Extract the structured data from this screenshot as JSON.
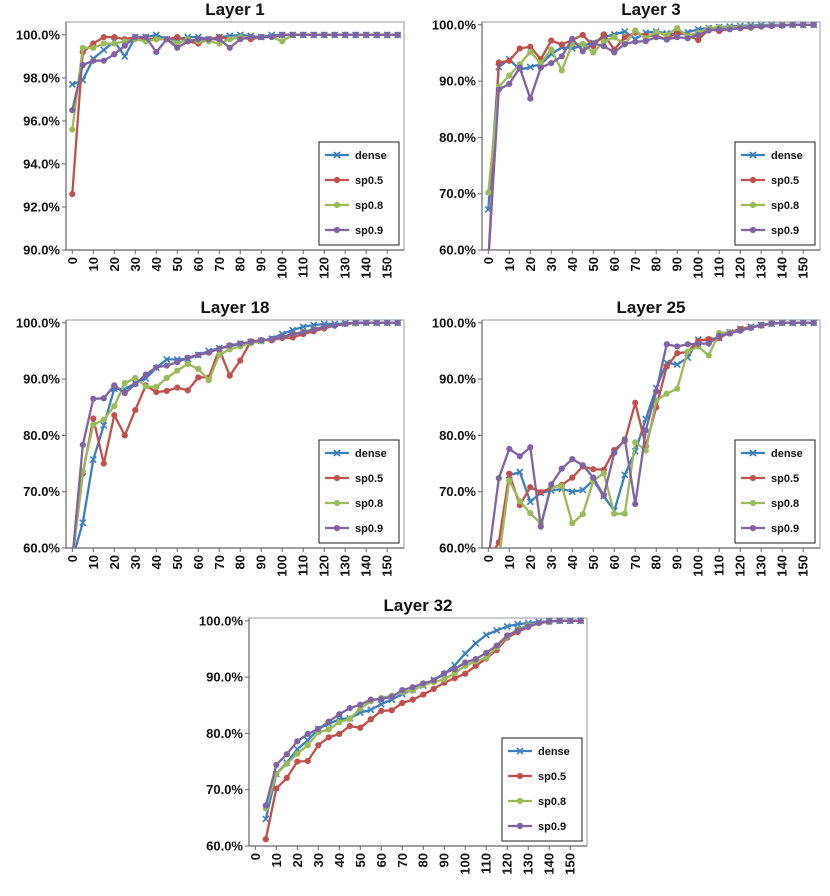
{
  "chart_data": [
    {
      "type": "line",
      "title": "Layer 1",
      "xlabel": "",
      "ylabel": "",
      "x": [
        0,
        5,
        10,
        15,
        20,
        25,
        30,
        35,
        40,
        45,
        50,
        55,
        60,
        65,
        70,
        75,
        80,
        85,
        90,
        95,
        100,
        105,
        110,
        115,
        120,
        125,
        130,
        135,
        140,
        145,
        150,
        155
      ],
      "xticks": [
        0,
        10,
        20,
        30,
        40,
        50,
        60,
        70,
        80,
        90,
        100,
        110,
        120,
        130,
        140,
        150
      ],
      "yticks": [
        90,
        92,
        94,
        96,
        98,
        100
      ],
      "ylim": [
        90,
        100.6
      ],
      "ytick_format": "%",
      "y_decimals": 1,
      "grid": false,
      "legend_position": "bottom-right",
      "series": [
        {
          "name": "dense",
          "color": "#3c7fbf",
          "marker": "x",
          "values": [
            97.7,
            97.9,
            98.9,
            99.3,
            99.7,
            99.0,
            99.9,
            99.9,
            100.0,
            99.8,
            99.8,
            99.9,
            99.9,
            99.8,
            99.9,
            99.95,
            100.0,
            99.95,
            99.9,
            100.0,
            100.0,
            100.0,
            100.0,
            100.0,
            100.0,
            100.0,
            100.0,
            100.0,
            100.0,
            100.0,
            100.0,
            100.0
          ]
        },
        {
          "name": "sp0.5",
          "color": "#c0504d",
          "marker": "o",
          "values": [
            92.6,
            99.2,
            99.6,
            99.9,
            99.9,
            99.8,
            99.9,
            99.8,
            99.8,
            99.8,
            99.9,
            99.7,
            99.6,
            99.8,
            99.9,
            99.8,
            99.9,
            99.8,
            99.9,
            99.9,
            100.0,
            100.0,
            100.0,
            100.0,
            100.0,
            100.0,
            100.0,
            100.0,
            100.0,
            100.0,
            100.0,
            100.0
          ]
        },
        {
          "name": "sp0.8",
          "color": "#9bbb59",
          "marker": "o",
          "values": [
            95.6,
            99.4,
            99.4,
            99.6,
            99.6,
            99.7,
            99.8,
            99.7,
            99.8,
            99.8,
            99.6,
            99.8,
            99.7,
            99.7,
            99.6,
            99.8,
            99.9,
            99.9,
            99.9,
            99.9,
            99.7,
            100.0,
            100.0,
            100.0,
            100.0,
            100.0,
            100.0,
            100.0,
            100.0,
            100.0,
            100.0,
            100.0
          ]
        },
        {
          "name": "sp0.9",
          "color": "#8064a2",
          "marker": "o",
          "values": [
            96.5,
            98.6,
            98.8,
            98.8,
            99.1,
            99.5,
            99.9,
            99.9,
            99.2,
            99.8,
            99.4,
            99.7,
            99.8,
            99.8,
            99.8,
            99.4,
            99.8,
            99.9,
            99.9,
            99.9,
            100.0,
            100.0,
            100.0,
            100.0,
            100.0,
            100.0,
            100.0,
            100.0,
            100.0,
            100.0,
            100.0,
            100.0
          ]
        }
      ]
    },
    {
      "type": "line",
      "title": "Layer 3",
      "xlabel": "",
      "ylabel": "",
      "x": [
        0,
        5,
        10,
        15,
        20,
        25,
        30,
        35,
        40,
        45,
        50,
        55,
        60,
        65,
        70,
        75,
        80,
        85,
        90,
        95,
        100,
        105,
        110,
        115,
        120,
        125,
        130,
        135,
        140,
        145,
        150,
        155
      ],
      "xticks": [
        0,
        10,
        20,
        30,
        40,
        50,
        60,
        70,
        80,
        90,
        100,
        110,
        120,
        130,
        140,
        150
      ],
      "yticks": [
        60,
        70,
        80,
        90,
        100
      ],
      "ylim": [
        60,
        100.5
      ],
      "ytick_format": "%",
      "y_decimals": 1,
      "grid": false,
      "legend_position": "bottom-right",
      "series": [
        {
          "name": "dense",
          "color": "#3c7fbf",
          "marker": "x",
          "values": [
            67.2,
            92.5,
            93.9,
            92.0,
            92.5,
            93.0,
            94.8,
            96.0,
            95.8,
            96.3,
            96.8,
            97.8,
            98.3,
            98.8,
            97.5,
            98.6,
            98.8,
            98.5,
            98.2,
            98.7,
            99.2,
            99.4,
            99.6,
            99.7,
            99.8,
            99.9,
            99.95,
            100.0,
            100.0,
            100.0,
            100.0,
            100.0
          ]
        },
        {
          "name": "sp0.5",
          "color": "#c0504d",
          "marker": "o",
          "values": [
            58.0,
            93.3,
            93.6,
            95.8,
            96.1,
            93.9,
            97.2,
            96.5,
            97.3,
            98.2,
            96.2,
            98.3,
            95.6,
            97.8,
            98.6,
            98.1,
            98.0,
            97.4,
            98.8,
            98.1,
            97.3,
            99.2,
            98.9,
            99.3,
            99.4,
            99.5,
            99.7,
            99.8,
            99.9,
            100.0,
            100.0,
            100.0
          ]
        },
        {
          "name": "sp0.8",
          "color": "#9bbb59",
          "marker": "o",
          "values": [
            70.2,
            89.0,
            91.0,
            93.0,
            95.2,
            93.2,
            95.6,
            91.9,
            96.6,
            96.6,
            95.1,
            97.0,
            97.8,
            96.5,
            99.0,
            97.6,
            98.7,
            98.2,
            99.4,
            98.0,
            98.6,
            99.4,
            99.6,
            99.5,
            99.6,
            99.7,
            99.8,
            99.9,
            100.0,
            100.0,
            100.0,
            100.0
          ]
        },
        {
          "name": "sp0.9",
          "color": "#8064a2",
          "marker": "o",
          "values": [
            58.0,
            88.5,
            89.5,
            92.4,
            86.9,
            92.4,
            93.2,
            94.4,
            97.5,
            95.3,
            96.7,
            96.2,
            95.1,
            96.6,
            97.0,
            97.1,
            97.8,
            97.4,
            97.8,
            97.6,
            98.2,
            99.0,
            99.2,
            99.2,
            99.4,
            99.6,
            99.7,
            99.8,
            99.9,
            100.0,
            100.0,
            100.0
          ]
        }
      ]
    },
    {
      "type": "line",
      "title": "Layer 18",
      "xlabel": "",
      "ylabel": "",
      "x": [
        0,
        5,
        10,
        15,
        20,
        25,
        30,
        35,
        40,
        45,
        50,
        55,
        60,
        65,
        70,
        75,
        80,
        85,
        90,
        95,
        100,
        105,
        110,
        115,
        120,
        125,
        130,
        135,
        140,
        145,
        150,
        155
      ],
      "xticks": [
        0,
        10,
        20,
        30,
        40,
        50,
        60,
        70,
        80,
        90,
        100,
        110,
        120,
        130,
        140,
        150
      ],
      "yticks": [
        60,
        70,
        80,
        90,
        100
      ],
      "ylim": [
        60,
        100.5
      ],
      "ytick_format": "%",
      "y_decimals": 1,
      "grid": false,
      "legend_position": "bottom-right",
      "series": [
        {
          "name": "dense",
          "color": "#3c7fbf",
          "marker": "x",
          "values": [
            58.0,
            64.5,
            75.7,
            81.8,
            88.3,
            88.2,
            89.3,
            90.1,
            92.0,
            93.5,
            93.5,
            93.6,
            94.3,
            95.0,
            95.5,
            95.8,
            96.3,
            96.6,
            96.8,
            97.2,
            98.0,
            98.7,
            99.3,
            99.6,
            99.8,
            99.8,
            99.9,
            100.0,
            100.0,
            100.0,
            100.0,
            100.0
          ]
        },
        {
          "name": "sp0.5",
          "color": "#c0504d",
          "marker": "o",
          "values": [
            58.0,
            73.2,
            83.0,
            75.0,
            83.6,
            80.0,
            84.5,
            88.9,
            87.7,
            87.9,
            88.5,
            88.0,
            90.3,
            90.3,
            95.3,
            90.6,
            93.3,
            96.7,
            96.9,
            96.9,
            97.3,
            97.4,
            98.0,
            98.5,
            99.0,
            99.5,
            99.8,
            100.0,
            100.0,
            100.0,
            100.0,
            100.0
          ]
        },
        {
          "name": "sp0.8",
          "color": "#9bbb59",
          "marker": "o",
          "values": [
            58.0,
            73.6,
            81.9,
            82.8,
            85.2,
            89.3,
            90.2,
            88.7,
            88.6,
            90.2,
            91.5,
            92.7,
            91.8,
            89.8,
            94.3,
            95.3,
            95.8,
            96.4,
            96.7,
            97.1,
            97.5,
            98.0,
            98.4,
            98.9,
            99.3,
            99.5,
            99.8,
            99.9,
            100.0,
            100.0,
            100.0,
            100.0
          ]
        },
        {
          "name": "sp0.9",
          "color": "#8064a2",
          "marker": "o",
          "values": [
            58.0,
            78.3,
            86.5,
            86.6,
            88.9,
            87.5,
            89.1,
            90.8,
            92.1,
            92.4,
            93.0,
            93.8,
            94.3,
            94.7,
            95.4,
            96.0,
            96.3,
            96.6,
            96.9,
            97.1,
            97.5,
            98.0,
            98.3,
            98.8,
            99.3,
            99.5,
            99.8,
            100.0,
            100.0,
            100.0,
            100.0,
            100.0
          ]
        }
      ]
    },
    {
      "type": "line",
      "title": "Layer 25",
      "xlabel": "",
      "ylabel": "",
      "x": [
        0,
        5,
        10,
        15,
        20,
        25,
        30,
        35,
        40,
        45,
        50,
        55,
        60,
        65,
        70,
        75,
        80,
        85,
        90,
        95,
        100,
        105,
        110,
        115,
        120,
        125,
        130,
        135,
        140,
        145,
        150,
        155
      ],
      "xticks": [
        0,
        10,
        20,
        30,
        40,
        50,
        60,
        70,
        80,
        90,
        100,
        110,
        120,
        130,
        140,
        150
      ],
      "yticks": [
        60,
        70,
        80,
        90,
        100
      ],
      "ylim": [
        60,
        100.5
      ],
      "ytick_format": "%",
      "y_decimals": 1,
      "grid": false,
      "legend_position": "bottom-right",
      "series": [
        {
          "name": "dense",
          "color": "#3c7fbf",
          "marker": "x",
          "values": [
            58.0,
            58.0,
            72.9,
            73.5,
            68.2,
            69.8,
            70.2,
            70.5,
            70.0,
            70.3,
            72.0,
            69.2,
            66.6,
            73.0,
            77.2,
            82.9,
            88.4,
            92.9,
            92.6,
            93.8,
            97.0,
            96.9,
            97.3,
            98.3,
            98.9,
            99.3,
            99.6,
            99.8,
            100.0,
            100.0,
            100.0,
            100.0
          ]
        },
        {
          "name": "sp0.5",
          "color": "#c0504d",
          "marker": "o",
          "values": [
            58.0,
            61.0,
            73.2,
            67.6,
            70.8,
            69.9,
            70.7,
            71.2,
            72.5,
            74.5,
            74.0,
            73.9,
            77.4,
            79.0,
            85.8,
            78.1,
            85.0,
            92.2,
            94.6,
            94.8,
            96.8,
            97.1,
            97.3,
            98.3,
            98.9,
            99.2,
            99.5,
            99.8,
            100.0,
            100.0,
            100.0,
            100.0
          ]
        },
        {
          "name": "sp0.8",
          "color": "#9bbb59",
          "marker": "o",
          "values": [
            58.0,
            58.0,
            72.0,
            68.3,
            66.2,
            64.3,
            70.8,
            71.0,
            64.4,
            66.0,
            71.9,
            73.3,
            66.1,
            66.1,
            78.8,
            77.3,
            86.2,
            87.4,
            88.3,
            94.9,
            95.8,
            94.2,
            98.2,
            98.3,
            98.6,
            99.2,
            99.6,
            99.8,
            100.0,
            100.0,
            100.0,
            100.0
          ]
        },
        {
          "name": "sp0.9",
          "color": "#8064a2",
          "marker": "o",
          "values": [
            58.0,
            72.4,
            77.6,
            76.3,
            77.9,
            63.8,
            71.3,
            74.1,
            75.8,
            74.7,
            72.5,
            69.3,
            76.9,
            79.3,
            67.8,
            80.9,
            87.8,
            96.2,
            95.8,
            96.2,
            96.3,
            96.3,
            97.7,
            98.1,
            98.6,
            99.1,
            99.6,
            99.9,
            100.0,
            100.0,
            100.0,
            100.0
          ]
        }
      ]
    },
    {
      "type": "line",
      "title": "Layer 32",
      "xlabel": "",
      "ylabel": "",
      "x": [
        5,
        10,
        15,
        20,
        25,
        30,
        35,
        40,
        45,
        50,
        55,
        60,
        65,
        70,
        75,
        80,
        85,
        90,
        95,
        100,
        105,
        110,
        115,
        120,
        125,
        130,
        135,
        140,
        145,
        150,
        155
      ],
      "xticks": [
        0,
        10,
        20,
        30,
        40,
        50,
        60,
        70,
        80,
        90,
        100,
        110,
        120,
        130,
        140,
        150
      ],
      "yticks": [
        60,
        70,
        80,
        90,
        100
      ],
      "ylim": [
        60,
        100.5
      ],
      "ytick_format": "%",
      "y_decimals": 1,
      "grid": false,
      "legend_position": "bottom-right",
      "series": [
        {
          "name": "dense",
          "color": "#3c7fbf",
          "marker": "x",
          "values": [
            64.8,
            72.8,
            74.8,
            77.2,
            78.8,
            80.8,
            81.7,
            82.5,
            82.7,
            83.7,
            84.2,
            85.2,
            86.0,
            87.0,
            87.8,
            88.5,
            89.5,
            90.5,
            92.1,
            94.2,
            96.0,
            97.5,
            98.3,
            99.0,
            99.4,
            99.6,
            99.8,
            99.9,
            100.0,
            100.0,
            100.0
          ]
        },
        {
          "name": "sp0.5",
          "color": "#c0504d",
          "marker": "o",
          "values": [
            61.2,
            70.2,
            72.1,
            75.0,
            75.1,
            77.9,
            79.3,
            79.9,
            81.3,
            81.0,
            82.5,
            84.0,
            84.1,
            85.4,
            86.0,
            86.9,
            87.9,
            89.0,
            89.8,
            90.6,
            92.0,
            93.3,
            94.8,
            97.0,
            98.0,
            98.9,
            99.6,
            99.9,
            100.0,
            100.0,
            100.0
          ]
        },
        {
          "name": "sp0.8",
          "color": "#9bbb59",
          "marker": "o",
          "values": [
            66.7,
            72.8,
            74.6,
            76.4,
            77.9,
            80.2,
            80.7,
            82.0,
            82.6,
            84.4,
            85.7,
            86.3,
            86.7,
            87.4,
            87.6,
            88.6,
            89.1,
            89.6,
            90.7,
            92.0,
            92.8,
            93.4,
            95.3,
            97.2,
            98.5,
            99.2,
            99.6,
            99.8,
            100.0,
            100.0,
            100.0
          ]
        },
        {
          "name": "sp0.9",
          "color": "#8064a2",
          "marker": "o",
          "values": [
            67.2,
            74.4,
            76.3,
            78.6,
            79.9,
            80.8,
            82.1,
            83.4,
            84.5,
            85.1,
            86.0,
            86.1,
            86.5,
            87.7,
            88.2,
            88.9,
            89.4,
            90.7,
            91.4,
            92.6,
            93.2,
            94.3,
            95.6,
            97.4,
            98.3,
            99.0,
            99.6,
            99.9,
            100.0,
            100.0,
            100.0
          ]
        }
      ]
    }
  ]
}
